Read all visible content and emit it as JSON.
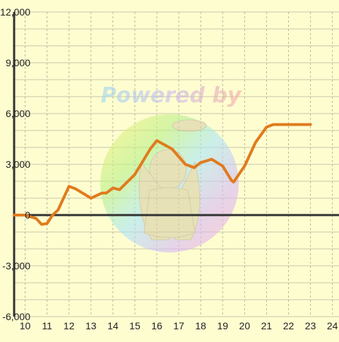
{
  "chart_data": {
    "type": "line",
    "title": "",
    "xlabel": "",
    "ylabel": "",
    "xlim": [
      9.5,
      24.3
    ],
    "ylim": [
      -6000,
      12000
    ],
    "x_ticks": [
      10,
      11,
      12,
      13,
      14,
      15,
      16,
      17,
      18,
      19,
      20,
      21,
      22,
      23,
      24
    ],
    "x_tick_labels": [
      "10",
      "11",
      "12",
      "13",
      "14",
      "15",
      "16",
      "17",
      "18",
      "19",
      "20",
      "21",
      "22",
      "23",
      "24"
    ],
    "y_ticks": [
      -6000,
      -3000,
      0,
      3000,
      6000,
      9000,
      12000
    ],
    "y_tick_labels": [
      "-6,000",
      "-3,000",
      "0",
      "3,000",
      "6,000",
      "9,000",
      "12,000"
    ],
    "grid": true,
    "legend": "none",
    "series": [
      {
        "color": "#e07b1e",
        "x": [
          9.5,
          10.0,
          10.5,
          10.75,
          11.0,
          11.25,
          11.5,
          12.0,
          12.3,
          13.0,
          13.5,
          13.7,
          14.0,
          14.3,
          15.0,
          15.7,
          16.0,
          16.7,
          17.3,
          17.7,
          18.0,
          18.5,
          19.0,
          19.4,
          19.5,
          20.0,
          20.5,
          21.0,
          21.3,
          22.0,
          23.0
        ],
        "y": [
          0,
          0,
          -200,
          -550,
          -500,
          0,
          300,
          1700,
          1550,
          1000,
          1300,
          1300,
          1600,
          1500,
          2400,
          3900,
          4400,
          3900,
          3000,
          2800,
          3100,
          3300,
          2900,
          2050,
          1950,
          2900,
          4300,
          5200,
          5350,
          5350,
          5350
        ]
      }
    ],
    "watermark_text": "Powered by"
  }
}
